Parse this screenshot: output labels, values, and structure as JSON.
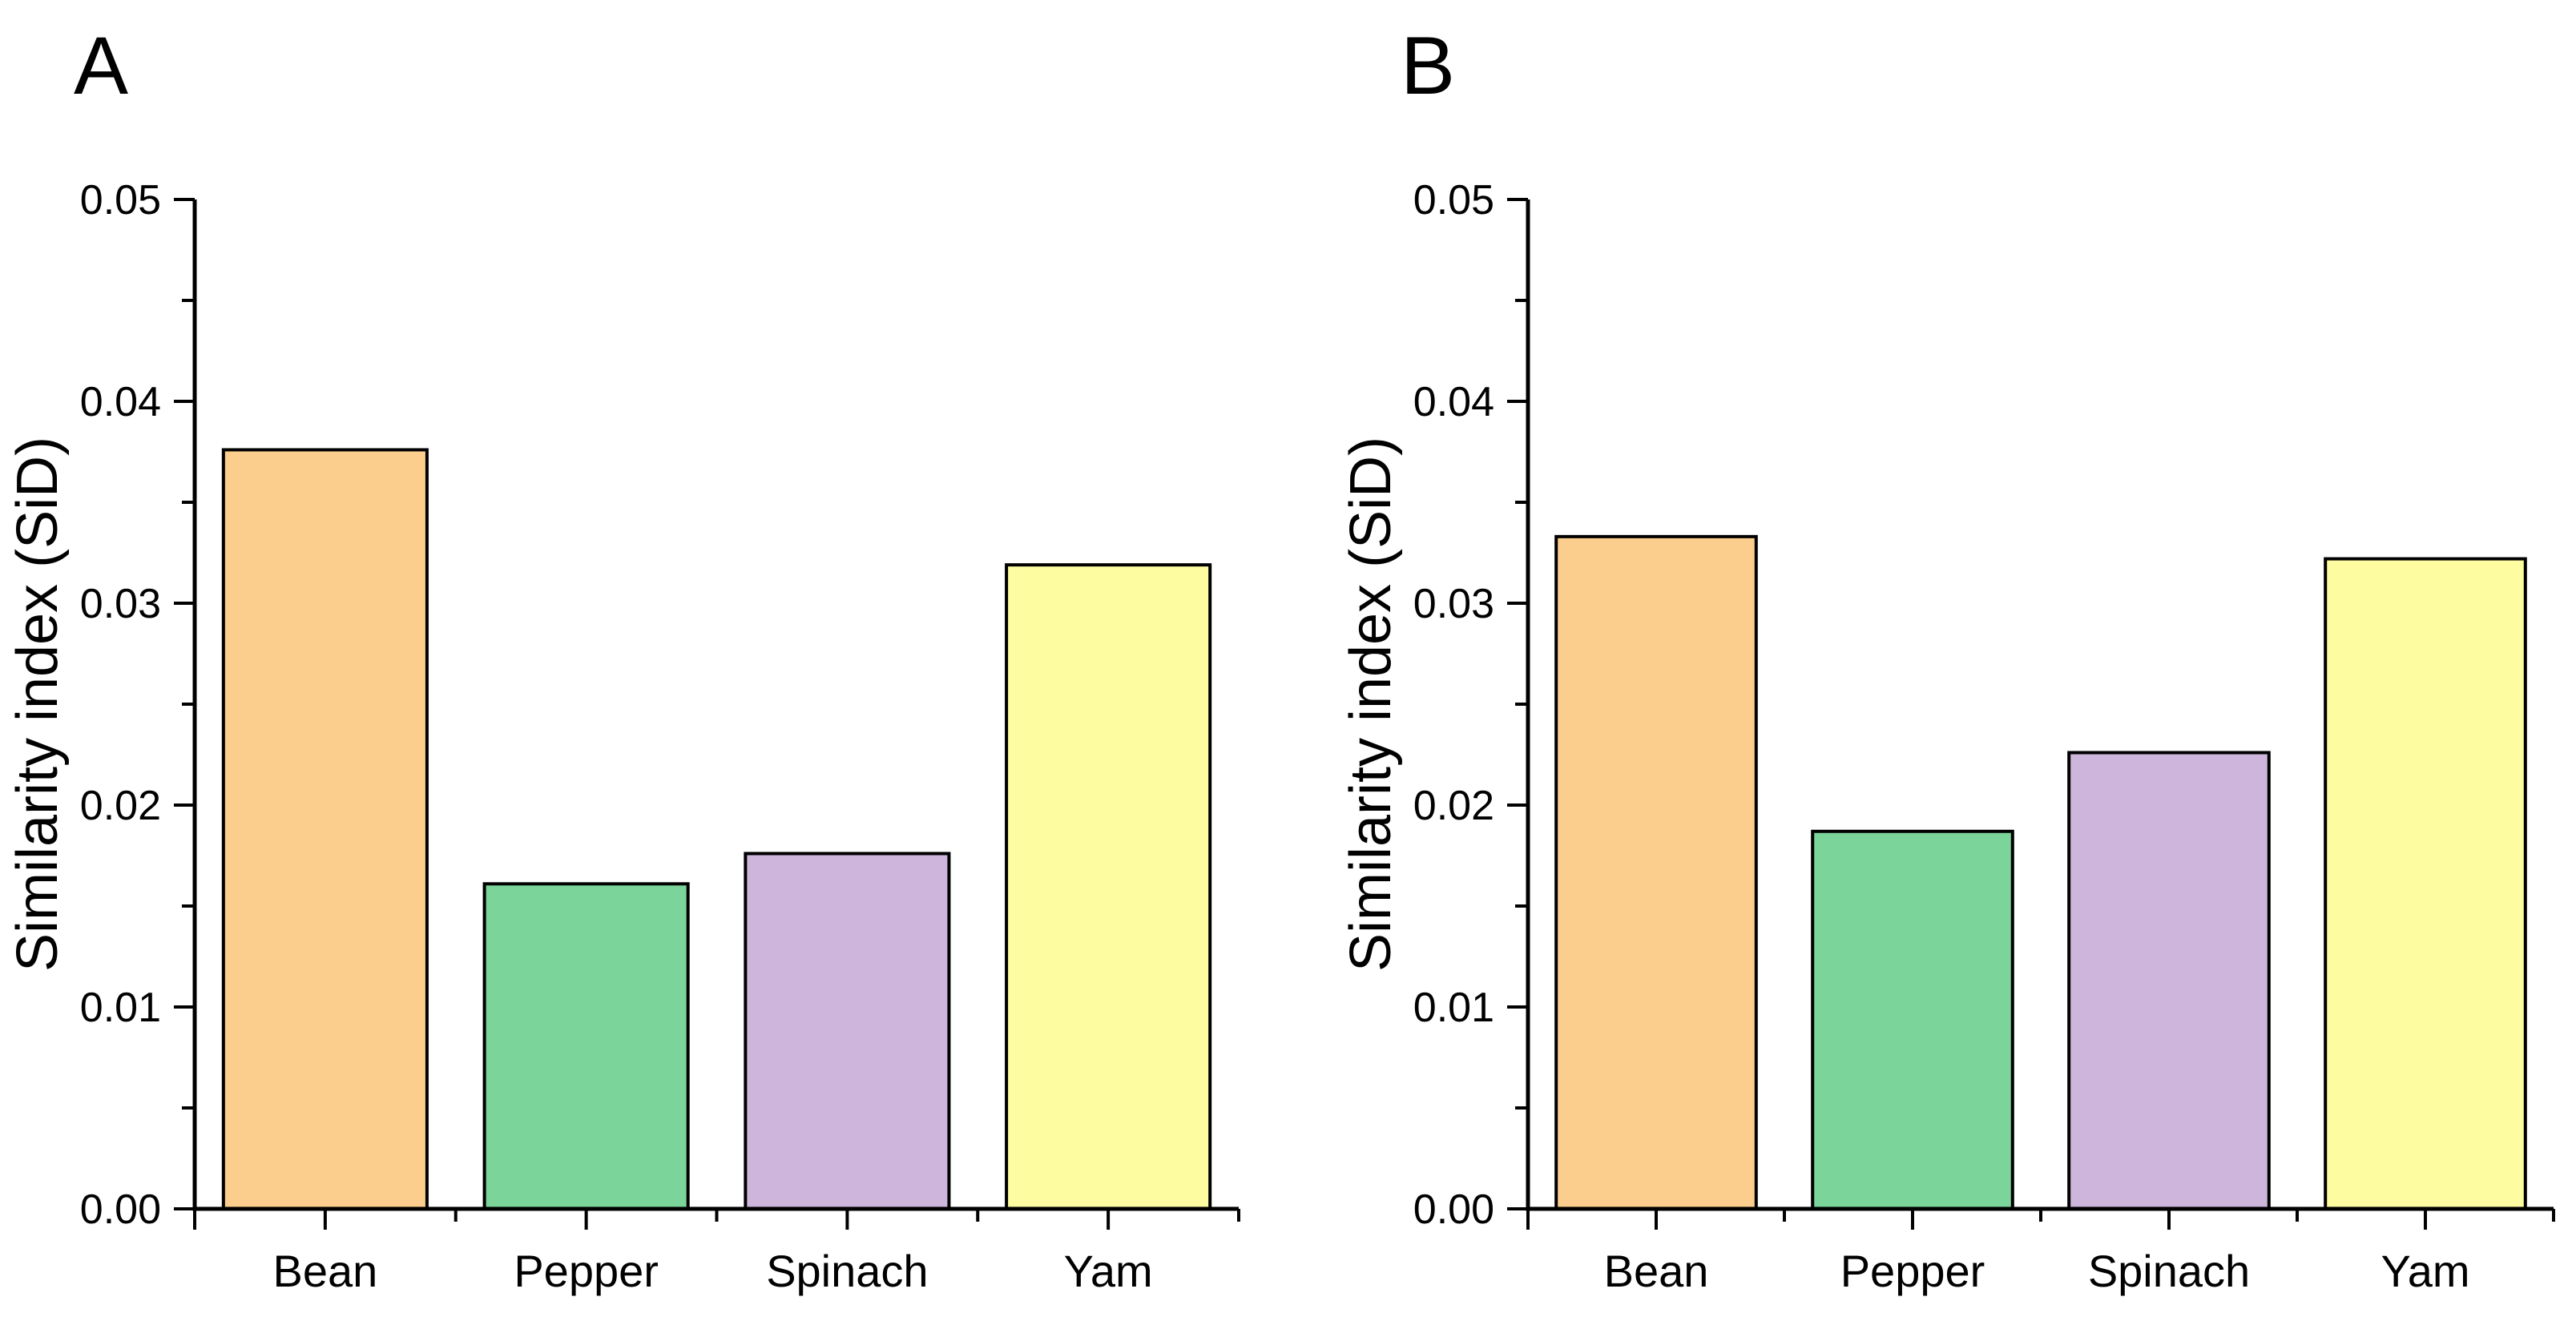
{
  "figure": {
    "background": "#FFFFFF",
    "text_color": "#000000",
    "axis_color": "#000000"
  },
  "chart_data": [
    {
      "type": "bar",
      "panel_label": "A",
      "title": "",
      "categories": [
        "Bean",
        "Pepper",
        "Spinach",
        "Yam"
      ],
      "values": [
        0.0376,
        0.0161,
        0.0176,
        0.0319
      ],
      "bar_colors": [
        "#FCCE8D",
        "#7BD49A",
        "#CDB5DB",
        "#FEFCA1"
      ],
      "bar_edge_color": "#000000",
      "xlabel": "",
      "ylabel": "Similarity index (SiD)",
      "ylim": [
        0,
        0.05
      ],
      "ytick_interval": 0.01,
      "minor_ytick_interval": 0.005,
      "ytick_labels": [
        "0.00",
        "0.01",
        "0.02",
        "0.03",
        "0.04",
        "0.05"
      ],
      "grid": false,
      "legend": "none"
    },
    {
      "type": "bar",
      "panel_label": "B",
      "title": "",
      "categories": [
        "Bean",
        "Pepper",
        "Spinach",
        "Yam"
      ],
      "values": [
        0.0333,
        0.0187,
        0.0226,
        0.0322
      ],
      "bar_colors": [
        "#FCCE8D",
        "#7BD49A",
        "#CDB5DB",
        "#FEFCA1"
      ],
      "bar_edge_color": "#000000",
      "xlabel": "",
      "ylabel": "Similarity index (SiD)",
      "ylim": [
        0,
        0.05
      ],
      "ytick_interval": 0.01,
      "minor_ytick_interval": 0.005,
      "ytick_labels": [
        "0.00",
        "0.01",
        "0.02",
        "0.03",
        "0.04",
        "0.05"
      ],
      "grid": false,
      "legend": "none"
    }
  ]
}
